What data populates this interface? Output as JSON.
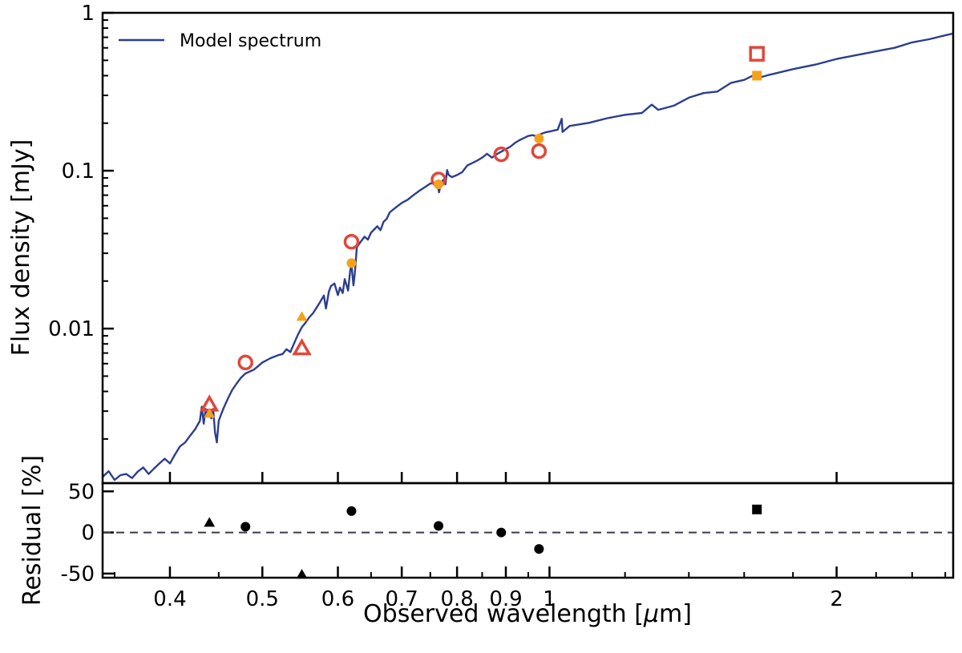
{
  "chart_data": {
    "type": "scatter",
    "top_panel": {
      "ylabel": "Flux density [mJy]",
      "yscale": "log",
      "ylim": [
        0.00105,
        1.0
      ],
      "ytick_labels": [
        {
          "value": 1.0,
          "label": "1"
        },
        {
          "value": 0.1,
          "label": "0.1"
        },
        {
          "value": 0.01,
          "label": "0.01"
        }
      ],
      "legend": {
        "label": "Model spectrum",
        "loc": "upper left"
      },
      "model_spectrum": {
        "name": "Model spectrum",
        "color": "#2c3e8f",
        "points": [
          [
            0.34,
            0.00115
          ],
          [
            0.345,
            0.00125
          ],
          [
            0.35,
            0.0011
          ],
          [
            0.355,
            0.00118
          ],
          [
            0.36,
            0.0012
          ],
          [
            0.365,
            0.00113
          ],
          [
            0.37,
            0.00124
          ],
          [
            0.375,
            0.00132
          ],
          [
            0.38,
            0.0012
          ],
          [
            0.385,
            0.0013
          ],
          [
            0.39,
            0.0014
          ],
          [
            0.395,
            0.0015
          ],
          [
            0.4,
            0.0014
          ],
          [
            0.405,
            0.0016
          ],
          [
            0.41,
            0.0018
          ],
          [
            0.415,
            0.0019
          ],
          [
            0.42,
            0.0021
          ],
          [
            0.425,
            0.0023
          ],
          [
            0.43,
            0.0026
          ],
          [
            0.432,
            0.0032
          ],
          [
            0.434,
            0.0025
          ],
          [
            0.436,
            0.0031
          ],
          [
            0.438,
            0.0028
          ],
          [
            0.44,
            0.0029
          ],
          [
            0.442,
            0.0027
          ],
          [
            0.444,
            0.0031
          ],
          [
            0.446,
            0.0022
          ],
          [
            0.448,
            0.0019
          ],
          [
            0.45,
            0.0026
          ],
          [
            0.452,
            0.0028
          ],
          [
            0.455,
            0.0031
          ],
          [
            0.46,
            0.0036
          ],
          [
            0.465,
            0.0041
          ],
          [
            0.47,
            0.0045
          ],
          [
            0.475,
            0.0049
          ],
          [
            0.48,
            0.0052
          ],
          [
            0.49,
            0.0055
          ],
          [
            0.5,
            0.0061
          ],
          [
            0.51,
            0.0065
          ],
          [
            0.52,
            0.0068
          ],
          [
            0.525,
            0.0069
          ],
          [
            0.53,
            0.0074
          ],
          [
            0.535,
            0.0071
          ],
          [
            0.54,
            0.0081
          ],
          [
            0.545,
            0.0092
          ],
          [
            0.55,
            0.0102
          ],
          [
            0.555,
            0.0109
          ],
          [
            0.56,
            0.0118
          ],
          [
            0.565,
            0.0125
          ],
          [
            0.57,
            0.0136
          ],
          [
            0.575,
            0.0148
          ],
          [
            0.58,
            0.0162
          ],
          [
            0.583,
            0.0134
          ],
          [
            0.587,
            0.0171
          ],
          [
            0.59,
            0.0186
          ],
          [
            0.595,
            0.0193
          ],
          [
            0.6,
            0.0163
          ],
          [
            0.603,
            0.0182
          ],
          [
            0.607,
            0.0168
          ],
          [
            0.61,
            0.0206
          ],
          [
            0.613,
            0.0186
          ],
          [
            0.615,
            0.0174
          ],
          [
            0.618,
            0.0232
          ],
          [
            0.62,
            0.0255
          ],
          [
            0.623,
            0.0188
          ],
          [
            0.625,
            0.0224
          ],
          [
            0.628,
            0.0327
          ],
          [
            0.632,
            0.0346
          ],
          [
            0.64,
            0.0382
          ],
          [
            0.645,
            0.0366
          ],
          [
            0.65,
            0.0405
          ],
          [
            0.66,
            0.0445
          ],
          [
            0.665,
            0.042
          ],
          [
            0.67,
            0.0475
          ],
          [
            0.675,
            0.0495
          ],
          [
            0.68,
            0.0545
          ],
          [
            0.69,
            0.0585
          ],
          [
            0.7,
            0.0625
          ],
          [
            0.71,
            0.0655
          ],
          [
            0.72,
            0.07
          ],
          [
            0.73,
            0.0745
          ],
          [
            0.74,
            0.0785
          ],
          [
            0.75,
            0.083
          ],
          [
            0.76,
            0.0835
          ],
          [
            0.763,
            0.0815
          ],
          [
            0.766,
            0.073
          ],
          [
            0.769,
            0.082
          ],
          [
            0.772,
            0.086
          ],
          [
            0.775,
            0.088
          ],
          [
            0.778,
            0.082
          ],
          [
            0.781,
            0.101
          ],
          [
            0.784,
            0.094
          ],
          [
            0.79,
            0.091
          ],
          [
            0.8,
            0.094
          ],
          [
            0.81,
            0.098
          ],
          [
            0.82,
            0.108
          ],
          [
            0.83,
            0.112
          ],
          [
            0.84,
            0.116
          ],
          [
            0.85,
            0.121
          ],
          [
            0.86,
            0.128
          ],
          [
            0.87,
            0.121
          ],
          [
            0.88,
            0.127
          ],
          [
            0.89,
            0.132
          ],
          [
            0.9,
            0.137
          ],
          [
            0.91,
            0.142
          ],
          [
            0.92,
            0.15
          ],
          [
            0.93,
            0.156
          ],
          [
            0.94,
            0.161
          ],
          [
            0.95,
            0.166
          ],
          [
            0.96,
            0.168
          ],
          [
            0.97,
            0.165
          ],
          [
            0.98,
            0.171
          ],
          [
            0.99,
            0.175
          ],
          [
            1.0,
            0.177
          ],
          [
            1.02,
            0.182
          ],
          [
            1.03,
            0.213
          ],
          [
            1.032,
            0.176
          ],
          [
            1.05,
            0.192
          ],
          [
            1.1,
            0.201
          ],
          [
            1.15,
            0.215
          ],
          [
            1.2,
            0.226
          ],
          [
            1.25,
            0.232
          ],
          [
            1.28,
            0.262
          ],
          [
            1.3,
            0.243
          ],
          [
            1.35,
            0.258
          ],
          [
            1.4,
            0.29
          ],
          [
            1.45,
            0.31
          ],
          [
            1.5,
            0.317
          ],
          [
            1.55,
            0.36
          ],
          [
            1.6,
            0.376
          ],
          [
            1.64,
            0.405
          ],
          [
            1.65,
            0.385
          ],
          [
            1.7,
            0.405
          ],
          [
            1.8,
            0.44
          ],
          [
            1.9,
            0.47
          ],
          [
            2.0,
            0.51
          ],
          [
            2.1,
            0.54
          ],
          [
            2.2,
            0.57
          ],
          [
            2.3,
            0.6
          ],
          [
            2.4,
            0.65
          ],
          [
            2.5,
            0.68
          ],
          [
            2.6,
            0.72
          ],
          [
            2.65,
            0.74
          ]
        ]
      },
      "observed_points": [
        {
          "marker": "triangle",
          "x": 0.44,
          "y": 0.0033
        },
        {
          "marker": "circle",
          "x": 0.48,
          "y": 0.0061
        },
        {
          "marker": "triangle",
          "x": 0.55,
          "y": 0.0075
        },
        {
          "marker": "circle",
          "x": 0.62,
          "y": 0.0355
        },
        {
          "marker": "circle",
          "x": 0.765,
          "y": 0.088
        },
        {
          "marker": "circle",
          "x": 0.89,
          "y": 0.127
        },
        {
          "marker": "circle",
          "x": 0.975,
          "y": 0.133
        },
        {
          "marker": "square",
          "x": 1.65,
          "y": 0.55
        }
      ],
      "synthetic_points": [
        {
          "marker": "triangle",
          "x": 0.44,
          "y": 0.0029
        },
        {
          "marker": "triangle",
          "x": 0.55,
          "y": 0.0119
        },
        {
          "marker": "circle",
          "x": 0.62,
          "y": 0.026
        },
        {
          "marker": "circle",
          "x": 0.765,
          "y": 0.082
        },
        {
          "marker": "circle",
          "x": 0.975,
          "y": 0.16
        },
        {
          "marker": "square",
          "x": 1.65,
          "y": 0.4
        }
      ]
    },
    "bottom_panel": {
      "ylabel": "Residual [%]",
      "ylim": [
        -55,
        60
      ],
      "ytick_labels": [
        {
          "value": 50,
          "label": "50"
        },
        {
          "value": 0,
          "label": "0"
        },
        {
          "value": -50,
          "label": "-50"
        }
      ],
      "zero_line": "dashed",
      "residuals": [
        {
          "marker": "triangle",
          "x": 0.44,
          "y": 12
        },
        {
          "marker": "circle",
          "x": 0.48,
          "y": 7
        },
        {
          "marker": "triangle",
          "x": 0.55,
          "y": -57
        },
        {
          "marker": "circle",
          "x": 0.62,
          "y": 26
        },
        {
          "marker": "circle",
          "x": 0.765,
          "y": 8
        },
        {
          "marker": "circle",
          "x": 0.89,
          "y": 0
        },
        {
          "marker": "circle",
          "x": 0.975,
          "y": -20
        },
        {
          "marker": "square",
          "x": 1.65,
          "y": 28
        }
      ]
    },
    "xlabel": "Observed wavelength [$\\mu$m]",
    "xlabel_parts": {
      "prefix": "Observed wavelength [",
      "mu": "μ",
      "suffix": "m]"
    },
    "xscale": "log",
    "xlim": [
      0.34,
      2.65
    ],
    "xtick_labels": [
      {
        "value": 0.4,
        "label": "0.4"
      },
      {
        "value": 0.5,
        "label": "0.5"
      },
      {
        "value": 0.6,
        "label": "0.6"
      },
      {
        "value": 0.7,
        "label": "0.7"
      },
      {
        "value": 0.8,
        "label": "0.8"
      },
      {
        "value": 0.9,
        "label": "0.9"
      },
      {
        "value": 1.0,
        "label": "1"
      },
      {
        "value": 2.0,
        "label": "2"
      }
    ],
    "colors": {
      "model": "#2c3e8f",
      "observed": "#e2463a",
      "synthetic": "#f5a21b",
      "residual": "#000000",
      "zero_line": "#3a3a4a"
    }
  }
}
